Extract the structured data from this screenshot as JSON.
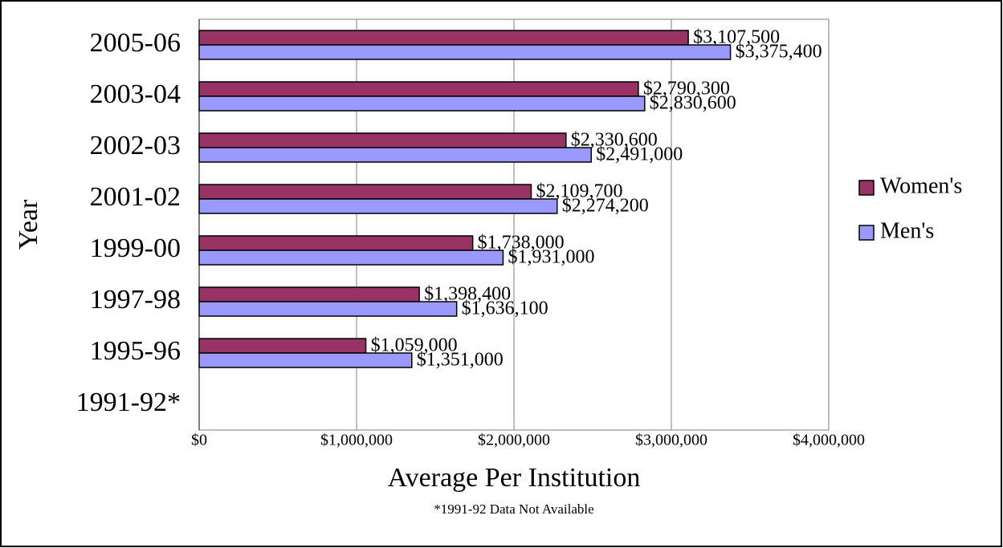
{
  "chart_data": {
    "type": "barh",
    "categories": [
      "2005-06",
      "2003-04",
      "2002-03",
      "2001-02",
      "1999-00",
      "1997-98",
      "1995-96",
      "1991-92*"
    ],
    "series": [
      {
        "name": "Women's",
        "color": "#993366",
        "values": [
          3107500,
          2790300,
          2330600,
          2109700,
          1738000,
          1398400,
          1059000,
          null
        ],
        "value_labels": [
          "$3,107,500",
          "$2,790,300",
          "$2,330,600",
          "$2,109,700",
          "$1,738,000",
          "$1,398,400",
          "$1,059,000",
          null
        ]
      },
      {
        "name": "Men's",
        "color": "#9999ff",
        "values": [
          3375400,
          2830600,
          2491000,
          2274200,
          1931000,
          1636100,
          1351000,
          null
        ],
        "value_labels": [
          "$3,375,400",
          "$2,830,600",
          "$2,491,000",
          "$2,274,200",
          "$1,931,000",
          "$1,636,100",
          "$1,351,000",
          null
        ]
      }
    ],
    "xlim": [
      0,
      4000000
    ],
    "xticks": [
      {
        "value": 0,
        "label": "$0"
      },
      {
        "value": 1000000,
        "label": "$1,000,000"
      },
      {
        "value": 2000000,
        "label": "$2,000,000"
      },
      {
        "value": 3000000,
        "label": "$3,000,000"
      },
      {
        "value": 4000000,
        "label": "$4,000,000"
      }
    ],
    "xlabel": "Average Per Institution",
    "ylabel": "Year",
    "note": "*1991-92 Data Not Available",
    "grid": true,
    "legend": "right"
  }
}
